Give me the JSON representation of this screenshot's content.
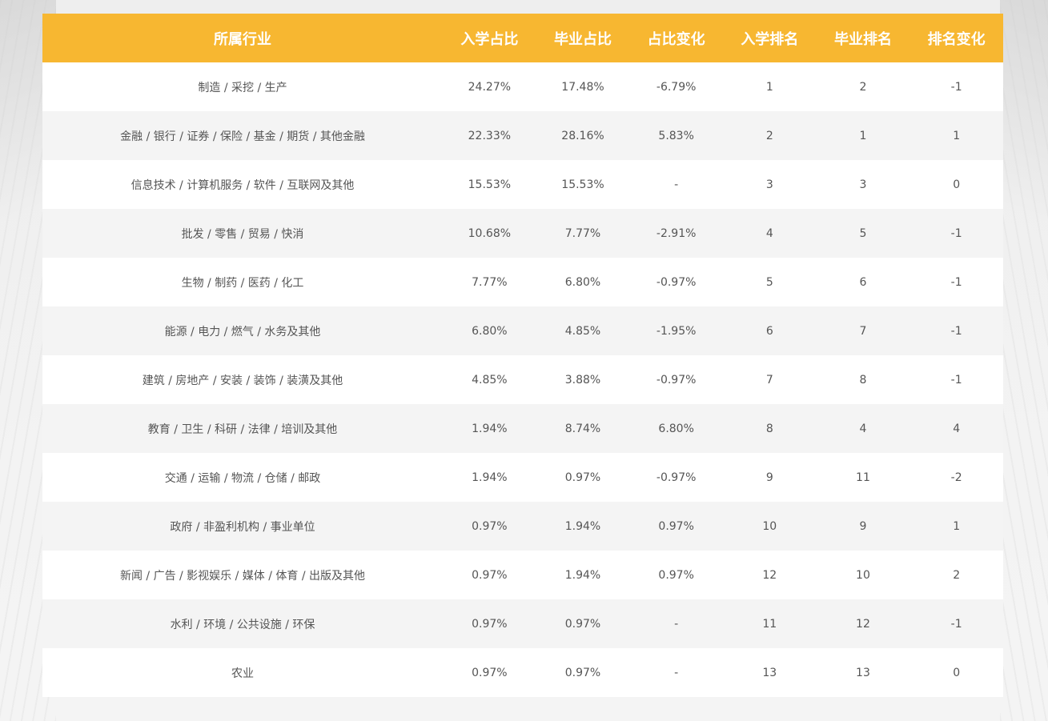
{
  "table": {
    "headers": [
      "所属行业",
      "入学占比",
      "毕业占比",
      "占比变化",
      "入学排名",
      "毕业排名",
      "排名变化"
    ],
    "rows": [
      [
        "制造 / 采挖 / 生产",
        "24.27%",
        "17.48%",
        "-6.79%",
        "1",
        "2",
        "-1"
      ],
      [
        "金融 / 银行 / 证券 / 保险 / 基金 / 期货 / 其他金融",
        "22.33%",
        "28.16%",
        "5.83%",
        "2",
        "1",
        "1"
      ],
      [
        "信息技术 / 计算机服务 / 软件 / 互联网及其他",
        "15.53%",
        "15.53%",
        "-",
        "3",
        "3",
        "0"
      ],
      [
        "批发 / 零售 / 贸易 / 快消",
        "10.68%",
        "7.77%",
        "-2.91%",
        "4",
        "5",
        "-1"
      ],
      [
        "生物 / 制药 / 医药 / 化工",
        "7.77%",
        "6.80%",
        "-0.97%",
        "5",
        "6",
        "-1"
      ],
      [
        "能源 / 电力 / 燃气 / 水务及其他",
        "6.80%",
        "4.85%",
        "-1.95%",
        "6",
        "7",
        "-1"
      ],
      [
        "建筑 / 房地产 / 安装 / 装饰 / 装潢及其他",
        "4.85%",
        "3.88%",
        "-0.97%",
        "7",
        "8",
        "-1"
      ],
      [
        "教育 / 卫生 / 科研 / 法律 / 培训及其他",
        "1.94%",
        "8.74%",
        "6.80%",
        "8",
        "4",
        "4"
      ],
      [
        "交通 / 运输 / 物流 / 仓储 / 邮政",
        "1.94%",
        "0.97%",
        "-0.97%",
        "9",
        "11",
        "-2"
      ],
      [
        "政府 / 非盈利机构 / 事业单位",
        "0.97%",
        "1.94%",
        "0.97%",
        "10",
        "9",
        "1"
      ],
      [
        "新闻 / 广告 / 影视娱乐 / 媒体 / 体育 / 出版及其他",
        "0.97%",
        "1.94%",
        "0.97%",
        "12",
        "10",
        "2"
      ],
      [
        "水利 / 环境 / 公共设施 / 环保",
        "0.97%",
        "0.97%",
        "-",
        "11",
        "12",
        "-1"
      ],
      [
        "农业",
        "0.97%",
        "0.97%",
        "-",
        "13",
        "13",
        "0"
      ]
    ]
  },
  "colors": {
    "header_bg": "#f7b731",
    "header_text": "#ffffff",
    "row_odd": "#ffffff",
    "row_even": "#f4f4f4",
    "cell_text": "#555555"
  }
}
